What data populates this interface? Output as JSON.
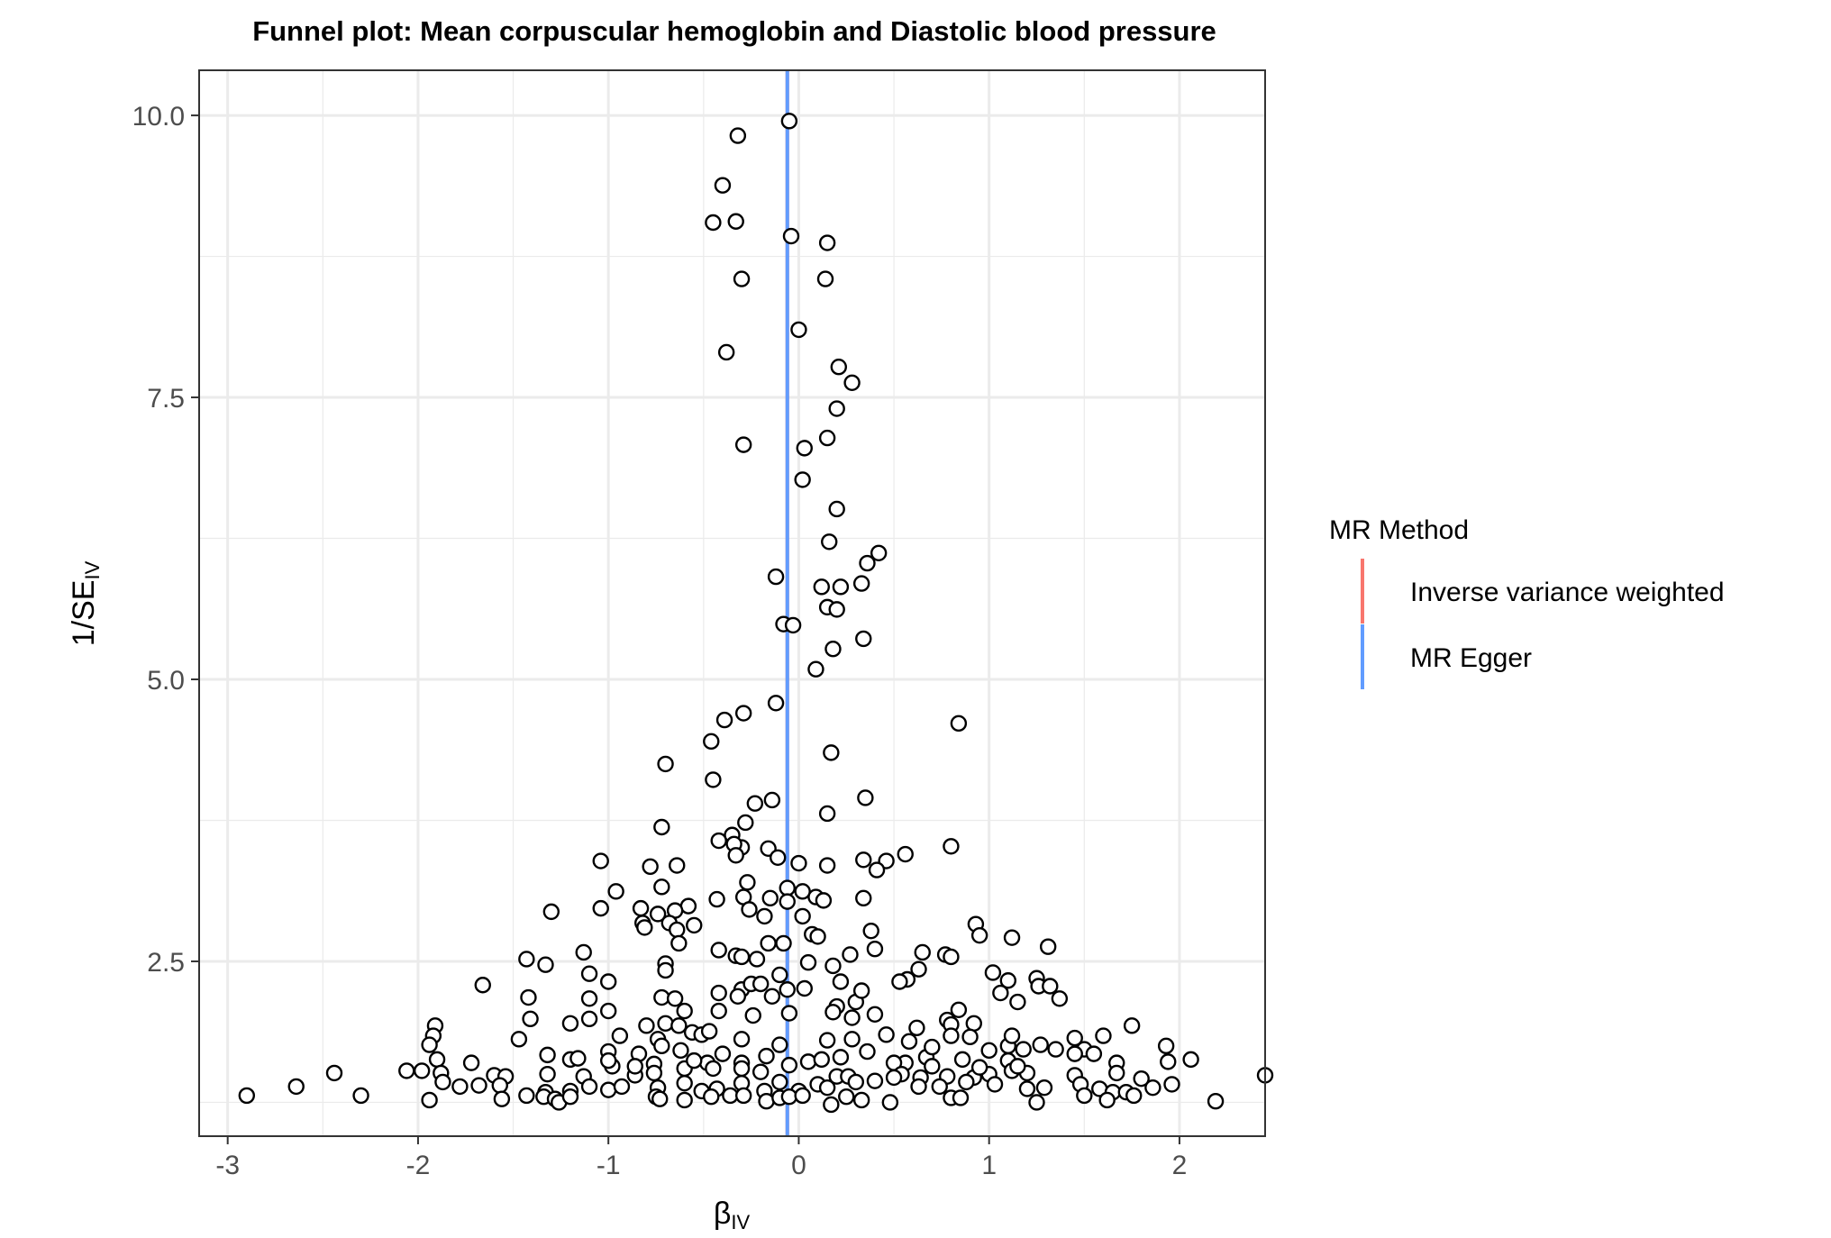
{
  "chart_data": {
    "type": "scatter",
    "title": "Funnel plot: Mean corpuscular hemoglobin and Diastolic blood pressure",
    "xlabel": {
      "main": "β",
      "sub": "IV"
    },
    "ylabel": {
      "main": "1/SE",
      "sub": "IV"
    },
    "xlim": [
      -3.15,
      2.45
    ],
    "ylim": [
      0.95,
      10.4
    ],
    "xticks": [
      -3,
      -2,
      -1,
      0,
      1,
      2
    ],
    "xtick_labels": [
      "-3",
      "-2",
      "-1",
      "0",
      "1",
      "2"
    ],
    "yticks": [
      2.5,
      5.0,
      7.5,
      10.0
    ],
    "ytick_labels": [
      "2.5",
      "5.0",
      "7.5",
      "10.0"
    ],
    "grid": true,
    "legend": {
      "title": "MR Method",
      "placement": "right",
      "entries": [
        {
          "label": "Inverse variance weighted",
          "color": "#F8766D"
        },
        {
          "label": "MR Egger",
          "color": "#619CFF"
        }
      ]
    },
    "vlines": [
      {
        "name": "Inverse variance weighted",
        "x": -0.06,
        "color": "#F8766D"
      },
      {
        "name": "MR Egger",
        "x": -0.06,
        "color": "#619CFF"
      }
    ],
    "points": [
      [
        -0.05,
        9.95
      ],
      [
        -0.32,
        9.82
      ],
      [
        -0.4,
        9.38
      ],
      [
        -0.45,
        9.05
      ],
      [
        -0.33,
        9.06
      ],
      [
        -0.04,
        8.93
      ],
      [
        0.15,
        8.87
      ],
      [
        -0.3,
        8.55
      ],
      [
        0.14,
        8.55
      ],
      [
        0.0,
        8.1
      ],
      [
        -0.38,
        7.9
      ],
      [
        0.21,
        7.77
      ],
      [
        0.28,
        7.63
      ],
      [
        0.2,
        7.4
      ],
      [
        0.15,
        7.14
      ],
      [
        -0.29,
        7.08
      ],
      [
        0.03,
        7.05
      ],
      [
        0.02,
        6.77
      ],
      [
        0.2,
        6.51
      ],
      [
        0.16,
        6.22
      ],
      [
        0.42,
        6.12
      ],
      [
        0.36,
        6.03
      ],
      [
        -0.12,
        5.91
      ],
      [
        0.12,
        5.82
      ],
      [
        0.22,
        5.82
      ],
      [
        0.33,
        5.85
      ],
      [
        0.15,
        5.64
      ],
      [
        0.2,
        5.62
      ],
      [
        -0.08,
        5.49
      ],
      [
        -0.03,
        5.48
      ],
      [
        0.34,
        5.36
      ],
      [
        0.18,
        5.27
      ],
      [
        0.09,
        5.09
      ],
      [
        -0.12,
        4.79
      ],
      [
        -0.29,
        4.7
      ],
      [
        -0.39,
        4.64
      ],
      [
        -0.46,
        4.45
      ],
      [
        0.84,
        4.61
      ],
      [
        0.17,
        4.35
      ],
      [
        -0.7,
        4.25
      ],
      [
        -0.45,
        4.11
      ],
      [
        -0.23,
        3.9
      ],
      [
        -0.14,
        3.93
      ],
      [
        0.35,
        3.95
      ],
      [
        0.15,
        3.81
      ],
      [
        -0.28,
        3.73
      ],
      [
        -0.72,
        3.69
      ],
      [
        -0.42,
        3.57
      ],
      [
        -0.35,
        3.62
      ],
      [
        -0.3,
        3.51
      ],
      [
        -0.34,
        3.54
      ],
      [
        0.8,
        3.52
      ],
      [
        0.56,
        3.45
      ],
      [
        -0.16,
        3.5
      ],
      [
        -0.33,
        3.44
      ],
      [
        -1.04,
        3.39
      ],
      [
        -0.78,
        3.34
      ],
      [
        -0.64,
        3.35
      ],
      [
        -0.11,
        3.42
      ],
      [
        0.0,
        3.37
      ],
      [
        0.15,
        3.35
      ],
      [
        0.34,
        3.4
      ],
      [
        0.46,
        3.39
      ],
      [
        0.41,
        3.31
      ],
      [
        -0.27,
        3.2
      ],
      [
        -0.96,
        3.12
      ],
      [
        -0.72,
        3.16
      ],
      [
        -0.06,
        3.15
      ],
      [
        0.02,
        3.12
      ],
      [
        0.09,
        3.07
      ],
      [
        -0.29,
        3.07
      ],
      [
        -0.15,
        3.06
      ],
      [
        -0.43,
        3.05
      ],
      [
        0.13,
        3.04
      ],
      [
        0.34,
        3.06
      ],
      [
        -0.06,
        3.03
      ],
      [
        -0.58,
        2.99
      ],
      [
        -0.65,
        2.95
      ],
      [
        -0.83,
        2.97
      ],
      [
        -1.04,
        2.97
      ],
      [
        -1.3,
        2.94
      ],
      [
        -0.74,
        2.92
      ],
      [
        -0.26,
        2.96
      ],
      [
        -0.18,
        2.9
      ],
      [
        0.02,
        2.9
      ],
      [
        -0.82,
        2.84
      ],
      [
        -0.81,
        2.8
      ],
      [
        -0.68,
        2.84
      ],
      [
        -0.55,
        2.82
      ],
      [
        -0.64,
        2.78
      ],
      [
        0.07,
        2.74
      ],
      [
        0.1,
        2.72
      ],
      [
        0.38,
        2.77
      ],
      [
        0.93,
        2.83
      ],
      [
        0.95,
        2.73
      ],
      [
        1.12,
        2.71
      ],
      [
        1.31,
        2.63
      ],
      [
        -0.63,
        2.66
      ],
      [
        -0.16,
        2.66
      ],
      [
        -0.08,
        2.66
      ],
      [
        -0.42,
        2.6
      ],
      [
        -0.33,
        2.55
      ],
      [
        -0.3,
        2.54
      ],
      [
        -1.13,
        2.58
      ],
      [
        -1.43,
        2.52
      ],
      [
        -1.33,
        2.47
      ],
      [
        -0.22,
        2.52
      ],
      [
        0.05,
        2.49
      ],
      [
        0.27,
        2.56
      ],
      [
        0.4,
        2.61
      ],
      [
        0.65,
        2.58
      ],
      [
        0.77,
        2.56
      ],
      [
        0.8,
        2.54
      ],
      [
        0.63,
        2.43
      ],
      [
        0.57,
        2.34
      ],
      [
        0.53,
        2.32
      ],
      [
        -0.7,
        2.48
      ],
      [
        -0.7,
        2.42
      ],
      [
        -1.1,
        2.39
      ],
      [
        -1.0,
        2.32
      ],
      [
        -0.1,
        2.38
      ],
      [
        0.18,
        2.46
      ],
      [
        0.22,
        2.32
      ],
      [
        1.02,
        2.4
      ],
      [
        1.1,
        2.33
      ],
      [
        1.25,
        2.35
      ],
      [
        -1.66,
        2.29
      ],
      [
        -1.42,
        2.18
      ],
      [
        -1.1,
        2.17
      ],
      [
        -0.72,
        2.18
      ],
      [
        -0.65,
        2.17
      ],
      [
        -0.42,
        2.22
      ],
      [
        -0.3,
        2.25
      ],
      [
        -0.25,
        2.3
      ],
      [
        -0.32,
        2.19
      ],
      [
        -0.14,
        2.19
      ],
      [
        -0.06,
        2.25
      ],
      [
        0.03,
        2.26
      ],
      [
        -0.2,
        2.3
      ],
      [
        0.3,
        2.14
      ],
      [
        0.33,
        2.24
      ],
      [
        0.2,
        2.1
      ],
      [
        1.06,
        2.22
      ],
      [
        1.15,
        2.14
      ],
      [
        1.26,
        2.28
      ],
      [
        1.32,
        2.28
      ],
      [
        1.37,
        2.17
      ],
      [
        -1.0,
        2.06
      ],
      [
        -0.6,
        2.06
      ],
      [
        -0.42,
        2.06
      ],
      [
        -1.41,
        1.99
      ],
      [
        -1.1,
        1.99
      ],
      [
        -1.2,
        1.95
      ],
      [
        -1.91,
        1.93
      ],
      [
        -0.7,
        1.95
      ],
      [
        -0.63,
        1.93
      ],
      [
        -0.24,
        2.02
      ],
      [
        -0.05,
        2.04
      ],
      [
        0.18,
        2.05
      ],
      [
        0.28,
        2.0
      ],
      [
        0.4,
        2.03
      ],
      [
        0.78,
        1.98
      ],
      [
        0.84,
        2.07
      ],
      [
        0.8,
        1.94
      ],
      [
        0.92,
        1.95
      ],
      [
        -1.92,
        1.84
      ],
      [
        -1.94,
        1.76
      ],
      [
        -1.47,
        1.81
      ],
      [
        -0.94,
        1.84
      ],
      [
        -0.74,
        1.81
      ],
      [
        -0.8,
        1.93
      ],
      [
        -0.56,
        1.87
      ],
      [
        -0.51,
        1.85
      ],
      [
        -0.47,
        1.88
      ],
      [
        -0.72,
        1.75
      ],
      [
        -0.3,
        1.81
      ],
      [
        -0.1,
        1.76
      ],
      [
        0.15,
        1.8
      ],
      [
        0.28,
        1.81
      ],
      [
        0.46,
        1.85
      ],
      [
        0.58,
        1.79
      ],
      [
        0.62,
        1.91
      ],
      [
        0.8,
        1.84
      ],
      [
        0.9,
        1.83
      ],
      [
        1.0,
        1.71
      ],
      [
        1.1,
        1.75
      ],
      [
        1.12,
        1.84
      ],
      [
        1.18,
        1.72
      ],
      [
        1.35,
        1.72
      ],
      [
        1.45,
        1.82
      ],
      [
        1.5,
        1.72
      ],
      [
        1.6,
        1.84
      ],
      [
        1.75,
        1.93
      ],
      [
        1.93,
        1.75
      ],
      [
        -1.9,
        1.63
      ],
      [
        -1.72,
        1.6
      ],
      [
        -1.32,
        1.67
      ],
      [
        -1.2,
        1.63
      ],
      [
        -1.16,
        1.64
      ],
      [
        -1.0,
        1.7
      ],
      [
        -0.84,
        1.68
      ],
      [
        -0.76,
        1.59
      ],
      [
        -0.62,
        1.71
      ],
      [
        -0.4,
        1.68
      ],
      [
        -0.48,
        1.6
      ],
      [
        -0.3,
        1.6
      ],
      [
        -0.17,
        1.66
      ],
      [
        0.05,
        1.61
      ],
      [
        0.12,
        1.63
      ],
      [
        0.22,
        1.65
      ],
      [
        0.36,
        1.7
      ],
      [
        0.56,
        1.6
      ],
      [
        0.67,
        1.65
      ],
      [
        0.7,
        1.74
      ],
      [
        0.86,
        1.63
      ],
      [
        1.1,
        1.62
      ],
      [
        1.27,
        1.76
      ],
      [
        1.45,
        1.68
      ],
      [
        1.55,
        1.68
      ],
      [
        1.67,
        1.6
      ],
      [
        1.94,
        1.61
      ],
      [
        2.06,
        1.63
      ],
      [
        -2.06,
        1.53
      ],
      [
        -1.98,
        1.53
      ],
      [
        -1.88,
        1.51
      ],
      [
        -1.6,
        1.49
      ],
      [
        -1.54,
        1.48
      ],
      [
        -1.32,
        1.5
      ],
      [
        -1.13,
        1.48
      ],
      [
        -0.98,
        1.57
      ],
      [
        -0.86,
        1.49
      ],
      [
        -0.76,
        1.51
      ],
      [
        -0.6,
        1.55
      ],
      [
        -0.45,
        1.55
      ],
      [
        -0.3,
        1.55
      ],
      [
        -0.2,
        1.52
      ],
      [
        -0.05,
        1.58
      ],
      [
        0.2,
        1.48
      ],
      [
        0.26,
        1.48
      ],
      [
        0.5,
        1.6
      ],
      [
        0.54,
        1.5
      ],
      [
        0.64,
        1.47
      ],
      [
        0.78,
        1.48
      ],
      [
        0.92,
        1.47
      ],
      [
        1.0,
        1.5
      ],
      [
        1.12,
        1.53
      ],
      [
        1.2,
        1.51
      ],
      [
        1.45,
        1.49
      ],
      [
        1.67,
        1.51
      ],
      [
        1.8,
        1.46
      ],
      [
        2.45,
        1.49
      ],
      [
        -2.64,
        1.39
      ],
      [
        -2.44,
        1.51
      ],
      [
        -1.87,
        1.43
      ],
      [
        -1.78,
        1.39
      ],
      [
        -1.68,
        1.4
      ],
      [
        -1.57,
        1.4
      ],
      [
        -1.43,
        1.31
      ],
      [
        -1.33,
        1.34
      ],
      [
        -1.2,
        1.35
      ],
      [
        -1.1,
        1.39
      ],
      [
        -1.0,
        1.36
      ],
      [
        -0.93,
        1.39
      ],
      [
        -0.74,
        1.38
      ],
      [
        -0.6,
        1.42
      ],
      [
        -0.51,
        1.35
      ],
      [
        -0.43,
        1.37
      ],
      [
        -0.3,
        1.42
      ],
      [
        -0.18,
        1.35
      ],
      [
        -0.1,
        1.43
      ],
      [
        0.0,
        1.35
      ],
      [
        0.1,
        1.41
      ],
      [
        0.15,
        1.38
      ],
      [
        0.3,
        1.43
      ],
      [
        0.4,
        1.44
      ],
      [
        0.5,
        1.47
      ],
      [
        0.63,
        1.39
      ],
      [
        0.74,
        1.39
      ],
      [
        0.88,
        1.43
      ],
      [
        1.03,
        1.41
      ],
      [
        1.2,
        1.37
      ],
      [
        1.29,
        1.38
      ],
      [
        1.48,
        1.41
      ],
      [
        1.58,
        1.37
      ],
      [
        1.65,
        1.34
      ],
      [
        1.72,
        1.34
      ],
      [
        1.86,
        1.38
      ],
      [
        1.96,
        1.41
      ],
      [
        -2.9,
        1.31
      ],
      [
        -2.3,
        1.31
      ],
      [
        -1.94,
        1.27
      ],
      [
        -1.56,
        1.28
      ],
      [
        -1.34,
        1.3
      ],
      [
        -1.28,
        1.28
      ],
      [
        -1.26,
        1.25
      ],
      [
        -1.2,
        1.3
      ],
      [
        -0.75,
        1.3
      ],
      [
        -0.73,
        1.28
      ],
      [
        -0.6,
        1.27
      ],
      [
        -0.46,
        1.3
      ],
      [
        -0.36,
        1.31
      ],
      [
        -0.29,
        1.31
      ],
      [
        -0.17,
        1.26
      ],
      [
        -0.1,
        1.29
      ],
      [
        -0.05,
        1.3
      ],
      [
        0.02,
        1.31
      ],
      [
        0.17,
        1.23
      ],
      [
        0.25,
        1.3
      ],
      [
        0.33,
        1.27
      ],
      [
        0.48,
        1.25
      ],
      [
        0.8,
        1.29
      ],
      [
        0.85,
        1.29
      ],
      [
        1.25,
        1.25
      ],
      [
        1.5,
        1.31
      ],
      [
        1.62,
        1.27
      ],
      [
        1.76,
        1.31
      ],
      [
        2.19,
        1.26
      ],
      [
        -1.0,
        1.62
      ],
      [
        -0.86,
        1.57
      ],
      [
        -0.55,
        1.62
      ],
      [
        0.7,
        1.57
      ],
      [
        0.95,
        1.56
      ],
      [
        1.15,
        1.57
      ]
    ]
  }
}
